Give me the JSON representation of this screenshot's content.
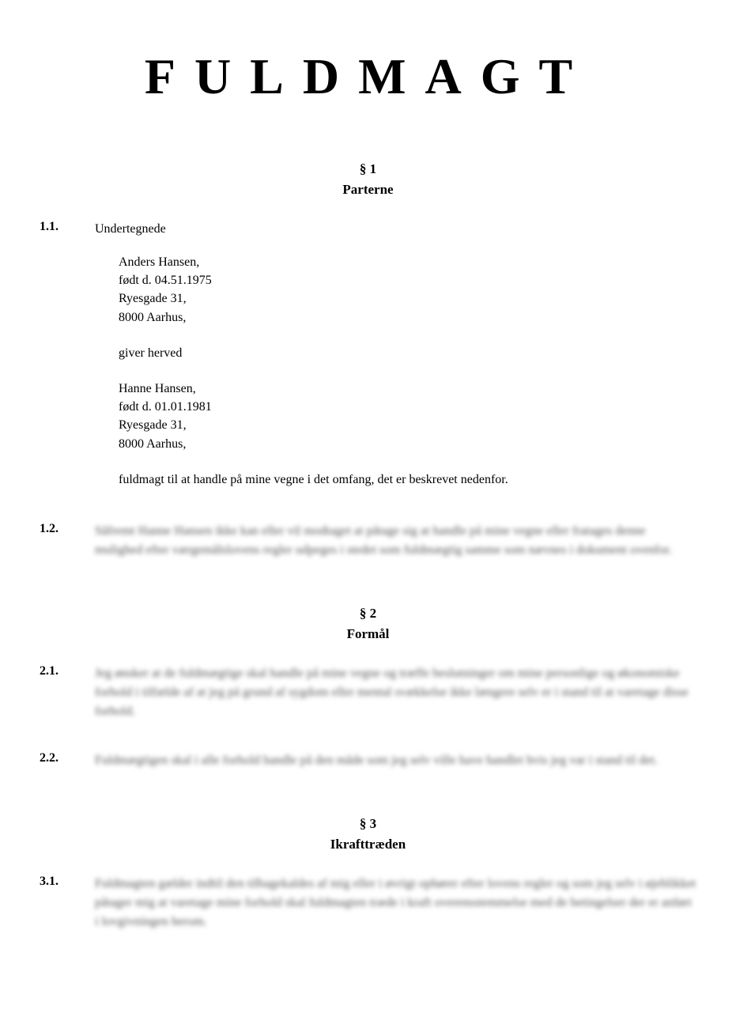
{
  "document": {
    "title": "FULDMAGT"
  },
  "sections": {
    "s1": {
      "number": "§ 1",
      "title": "Parterne"
    },
    "s2": {
      "number": "§ 2",
      "title": "Formål"
    },
    "s3": {
      "number": "§ 3",
      "title": "Ikrafttræden"
    }
  },
  "clauses": {
    "c1_1": {
      "num": "1.1.",
      "intro": "Undertegnede",
      "grantor": {
        "name": "Anders Hansen,",
        "born": "født d. 04.51.1975",
        "street": "Ryesgade 31,",
        "city": "8000 Aarhus,"
      },
      "gives": "giver herved",
      "grantee": {
        "name": "Hanne Hansen,",
        "born": "født d. 01.01.1981",
        "street": "Ryesgade 31,",
        "city": "8000 Aarhus,"
      },
      "tail": "fuldmagt til at handle på mine vegne i det omfang, det er beskrevet nedenfor."
    },
    "c1_2": {
      "num": "1.2.",
      "blurred_text": "Såfremt Hanne Hansen ikke kan eller vil modtaget at påtage sig at handle på mine vegne eller fratages denne mulighed efter værgemålslovens regler udpeges i stedet som fuldmægtig samme som nævnes i dokument ovenfor."
    },
    "c2_1": {
      "num": "2.1.",
      "blurred_text": "Jeg ønsker at de fuldmægtige skal handle på mine vegne og træffe beslutninger om mine personlige og økonomiske forhold i tilfælde af at jeg på grund af sygdom eller mental svækkelse ikke længere selv er i stand til at varetage disse forhold."
    },
    "c2_2": {
      "num": "2.2.",
      "blurred_text": "Fuldmægtigen skal i alle forhold handle på den måde som jeg selv ville have handlet hvis jeg var i stand til det."
    },
    "c3_1": {
      "num": "3.1.",
      "blurred_text": "Fuldmagten gælder indtil den tilbagekaldes af mig eller i øvrigt ophører efter lovens regler og som jeg selv i øjeblikket påtager mig at varetage mine forhold skal fuldmagten træde i kraft overensstemmelse med de betingelser der er anført i lovgivningen herom."
    }
  },
  "style": {
    "background_color": "#ffffff",
    "text_color": "#000000",
    "title_fontsize": 64,
    "title_letterspacing": 24,
    "body_fontsize": 16,
    "section_header_fontsize": 17
  }
}
